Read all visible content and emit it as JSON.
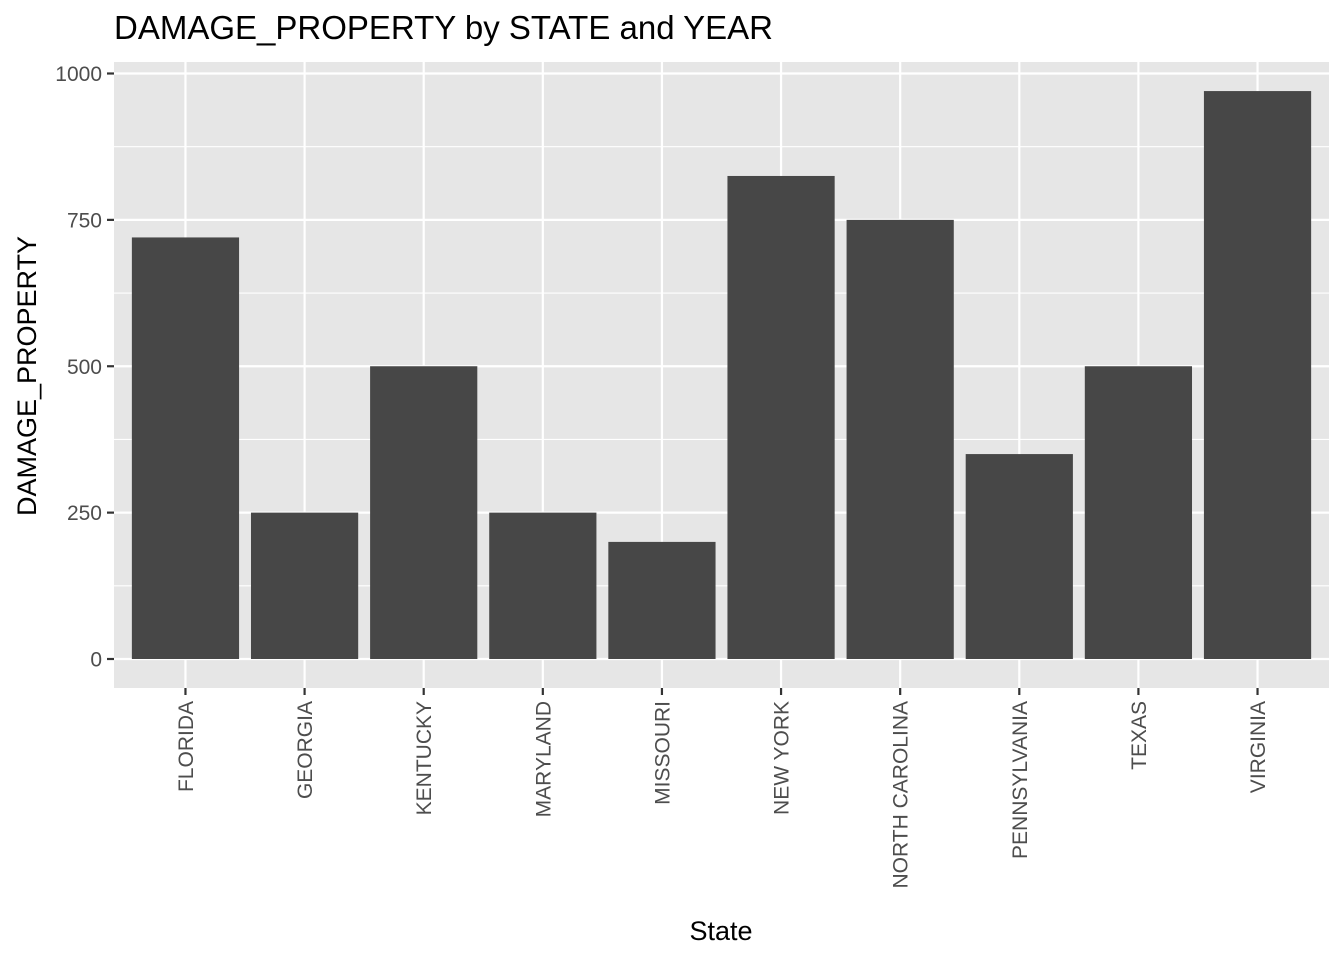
{
  "chart_data": {
    "type": "bar",
    "title": "DAMAGE_PROPERTY by STATE and YEAR",
    "xlabel": "State",
    "ylabel": "DAMAGE_PROPERTY",
    "categories": [
      "FLORIDA",
      "GEORGIA",
      "KENTUCKY",
      "MARYLAND",
      "MISSOURI",
      "NEW YORK",
      "NORTH CAROLINA",
      "PENNSYLVANIA",
      "TEXAS",
      "VIRGINIA"
    ],
    "values": [
      720,
      250,
      500,
      250,
      200,
      825,
      750,
      350,
      500,
      970
    ],
    "ylim": [
      0,
      1000
    ],
    "yticks": [
      0,
      250,
      500,
      750,
      1000
    ],
    "grid": true,
    "legend": "none",
    "colors": {
      "bar": "#474747",
      "panel": "#e6e6e6",
      "grid": "#ffffff",
      "tick_text": "#4d4d4d",
      "tick_mark": "#333333"
    }
  }
}
